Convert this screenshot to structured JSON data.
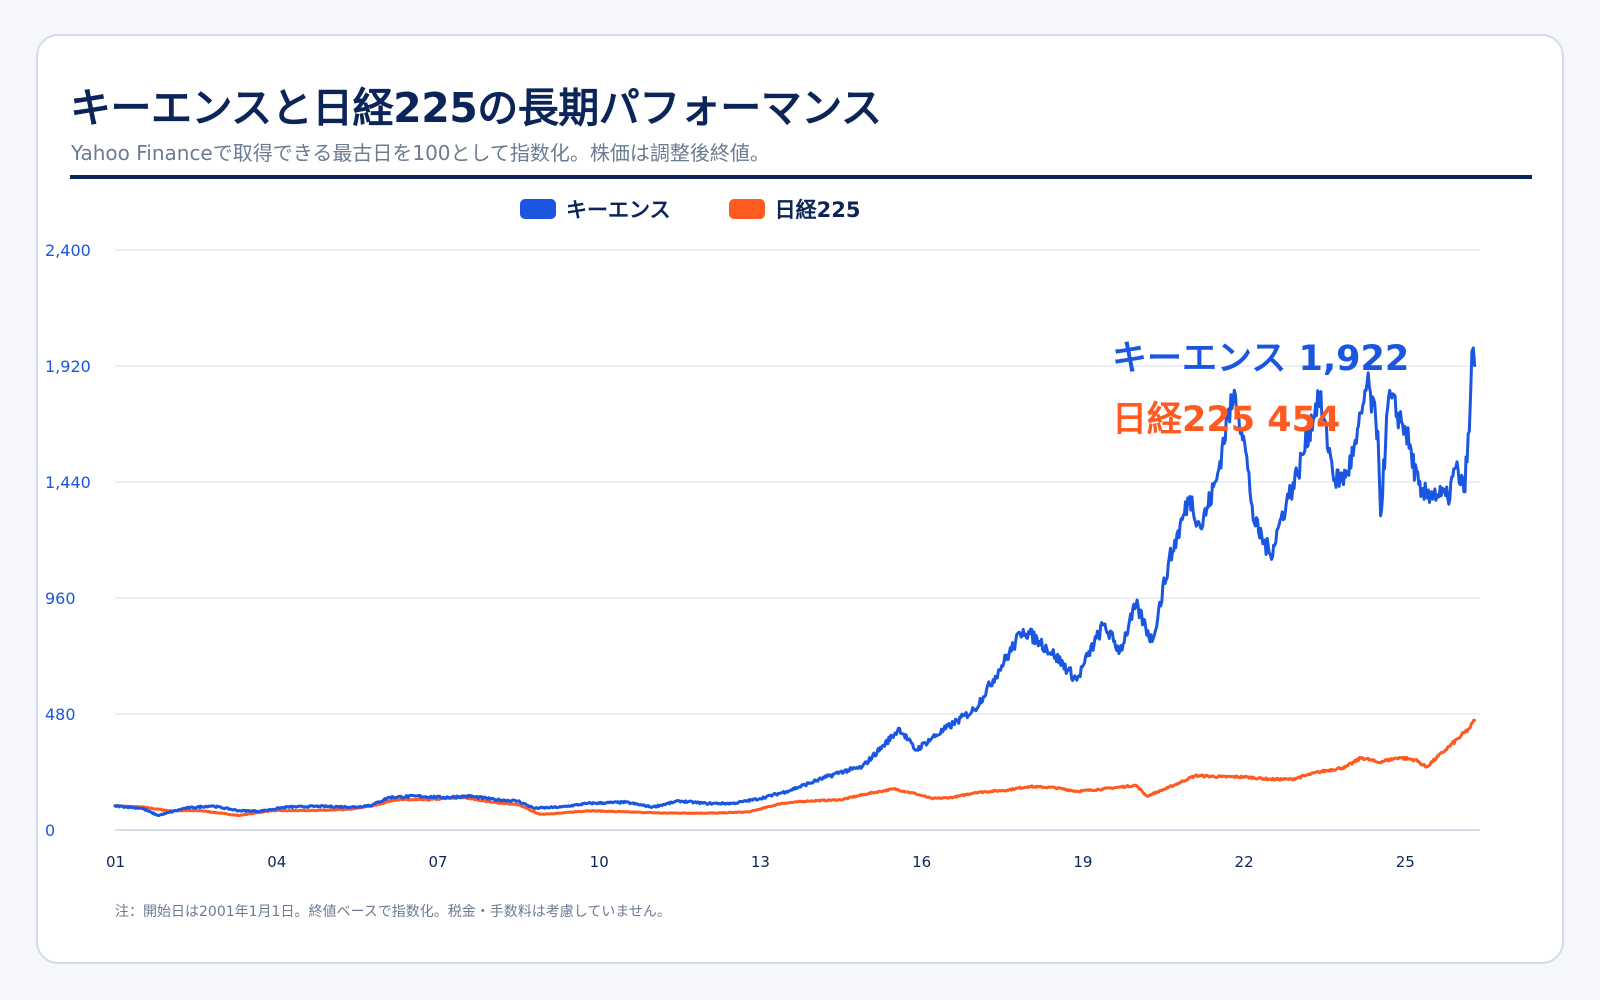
{
  "title": "キーエンスと日経225の長期パフォーマンス",
  "subtitle": "Yahoo Financeで取得できる最古日を100として指数化。株価は調整後終値。",
  "note": "注：開始日は2001年1月1日。終値ベースで指数化。税金・手数料は考慮していません。",
  "colors": {
    "keyence": "#1a56e0",
    "nikkei": "#ff5a1f",
    "navy": "#0b2559",
    "grid": "#d7e0ee"
  },
  "chart_data": {
    "type": "line",
    "title": "キーエンスと日経225の長期パフォーマンス",
    "ylim": [
      0,
      2400
    ],
    "xlim": [
      2001.0,
      2026.4
    ],
    "yticks": [
      0,
      480,
      960,
      1440,
      1920,
      2400
    ],
    "ytick_labels": [
      "0",
      "480",
      "960",
      "1,440",
      "1,920",
      "2,400"
    ],
    "xticks": [
      2001,
      2004,
      2007,
      2010,
      2013,
      2016,
      2019,
      2022,
      2025
    ],
    "xtick_labels": [
      "01",
      "04",
      "07",
      "10",
      "13",
      "16",
      "19",
      "22",
      "25"
    ],
    "grid": true,
    "legend_position": "top-center",
    "series": [
      {
        "name": "キーエンス",
        "end_label": "キーエンス 1,922",
        "color": "#1a56e0",
        "points": [
          [
            2001.0,
            100
          ],
          [
            2001.5,
            90
          ],
          [
            2001.8,
            60
          ],
          [
            2002.3,
            90
          ],
          [
            2002.8,
            100
          ],
          [
            2003.3,
            80
          ],
          [
            2003.7,
            78
          ],
          [
            2004.2,
            95
          ],
          [
            2004.8,
            98
          ],
          [
            2005.5,
            95
          ],
          [
            2005.8,
            105
          ],
          [
            2006.1,
            135
          ],
          [
            2006.6,
            140
          ],
          [
            2007.1,
            135
          ],
          [
            2007.6,
            140
          ],
          [
            2008.1,
            125
          ],
          [
            2008.5,
            120
          ],
          [
            2008.8,
            90
          ],
          [
            2009.3,
            95
          ],
          [
            2009.8,
            110
          ],
          [
            2010.5,
            115
          ],
          [
            2011.0,
            95
          ],
          [
            2011.5,
            120
          ],
          [
            2012.0,
            110
          ],
          [
            2012.5,
            110
          ],
          [
            2013.0,
            130
          ],
          [
            2013.5,
            160
          ],
          [
            2014.0,
            200
          ],
          [
            2014.5,
            240
          ],
          [
            2014.9,
            260
          ],
          [
            2015.3,
            350
          ],
          [
            2015.6,
            420
          ],
          [
            2015.9,
            330
          ],
          [
            2016.2,
            380
          ],
          [
            2016.6,
            440
          ],
          [
            2017.0,
            500
          ],
          [
            2017.5,
            680
          ],
          [
            2017.9,
            830
          ],
          [
            2018.2,
            780
          ],
          [
            2018.5,
            720
          ],
          [
            2018.9,
            620
          ],
          [
            2019.1,
            720
          ],
          [
            2019.4,
            850
          ],
          [
            2019.7,
            740
          ],
          [
            2020.0,
            930
          ],
          [
            2020.3,
            780
          ],
          [
            2020.6,
            1100
          ],
          [
            2021.0,
            1380
          ],
          [
            2021.2,
            1250
          ],
          [
            2021.5,
            1450
          ],
          [
            2021.7,
            1700
          ],
          [
            2021.85,
            1800
          ],
          [
            2022.0,
            1630
          ],
          [
            2022.2,
            1270
          ],
          [
            2022.5,
            1140
          ],
          [
            2022.8,
            1360
          ],
          [
            2023.0,
            1470
          ],
          [
            2023.4,
            1800
          ],
          [
            2023.7,
            1450
          ],
          [
            2023.9,
            1460
          ],
          [
            2024.1,
            1600
          ],
          [
            2024.3,
            1850
          ],
          [
            2024.5,
            1650
          ],
          [
            2024.55,
            1300
          ],
          [
            2024.7,
            1790
          ],
          [
            2025.0,
            1670
          ],
          [
            2025.3,
            1380
          ],
          [
            2025.5,
            1400
          ],
          [
            2025.8,
            1370
          ],
          [
            2025.95,
            1500
          ],
          [
            2026.1,
            1400
          ],
          [
            2026.2,
            1650
          ],
          [
            2026.25,
            1980
          ],
          [
            2026.3,
            1922
          ]
        ]
      },
      {
        "name": "日経225",
        "end_label": "日経225 454",
        "color": "#ff5a1f",
        "points": [
          [
            2001.0,
            100
          ],
          [
            2001.5,
            95
          ],
          [
            2002.0,
            80
          ],
          [
            2002.6,
            80
          ],
          [
            2003.3,
            60
          ],
          [
            2003.9,
            80
          ],
          [
            2004.6,
            80
          ],
          [
            2005.3,
            85
          ],
          [
            2005.8,
            100
          ],
          [
            2006.2,
            125
          ],
          [
            2006.8,
            125
          ],
          [
            2007.5,
            135
          ],
          [
            2008.0,
            115
          ],
          [
            2008.5,
            105
          ],
          [
            2008.9,
            65
          ],
          [
            2009.3,
            70
          ],
          [
            2009.8,
            80
          ],
          [
            2010.5,
            75
          ],
          [
            2011.2,
            70
          ],
          [
            2011.8,
            70
          ],
          [
            2012.2,
            70
          ],
          [
            2012.8,
            75
          ],
          [
            2013.4,
            110
          ],
          [
            2013.9,
            120
          ],
          [
            2014.5,
            125
          ],
          [
            2015.0,
            150
          ],
          [
            2015.5,
            170
          ],
          [
            2015.9,
            150
          ],
          [
            2016.2,
            130
          ],
          [
            2016.6,
            135
          ],
          [
            2017.0,
            155
          ],
          [
            2017.6,
            165
          ],
          [
            2018.0,
            180
          ],
          [
            2018.5,
            175
          ],
          [
            2018.9,
            160
          ],
          [
            2019.4,
            170
          ],
          [
            2020.0,
            185
          ],
          [
            2020.2,
            140
          ],
          [
            2020.6,
            175
          ],
          [
            2021.1,
            225
          ],
          [
            2021.6,
            220
          ],
          [
            2022.0,
            220
          ],
          [
            2022.5,
            210
          ],
          [
            2022.9,
            210
          ],
          [
            2023.4,
            240
          ],
          [
            2023.9,
            260
          ],
          [
            2024.2,
            300
          ],
          [
            2024.5,
            280
          ],
          [
            2024.9,
            300
          ],
          [
            2025.2,
            290
          ],
          [
            2025.4,
            260
          ],
          [
            2025.7,
            320
          ],
          [
            2026.0,
            380
          ],
          [
            2026.2,
            420
          ],
          [
            2026.3,
            454
          ]
        ]
      }
    ]
  }
}
